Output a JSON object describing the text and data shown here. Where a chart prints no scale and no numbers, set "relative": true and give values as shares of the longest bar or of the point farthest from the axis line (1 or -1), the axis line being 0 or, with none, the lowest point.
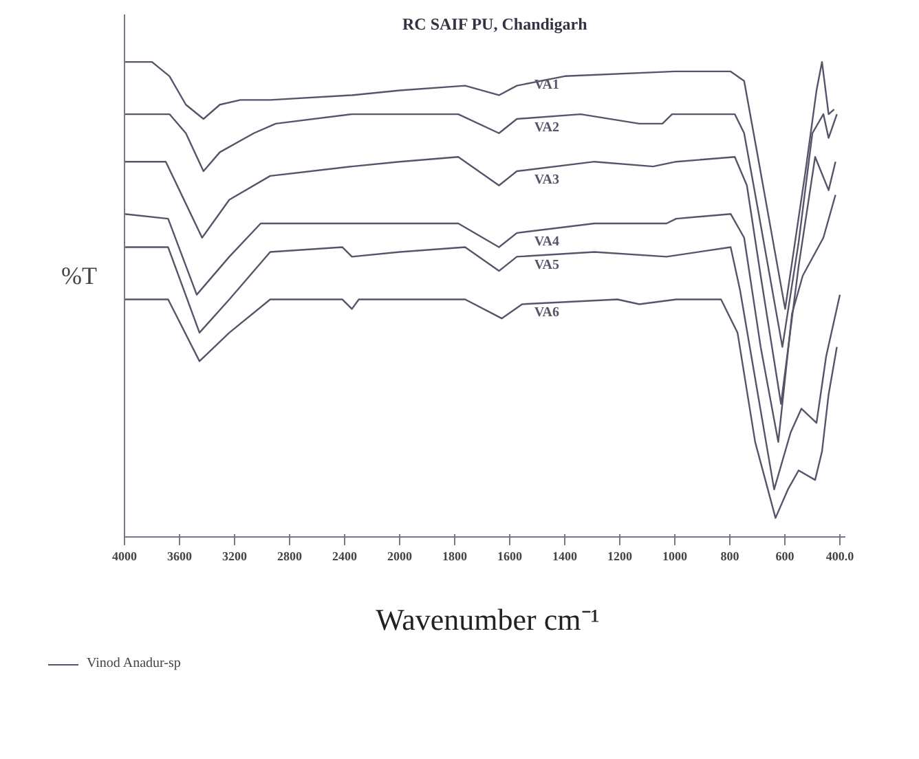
{
  "chart_data": [
    {
      "type": "line",
      "ylabel": "%T",
      "relative": true,
      "annotations": [
        "Vinod Anadur-sp"
      ],
      "xlim": [
        4000,
        2000
      ],
      "xticks": [
        4000,
        3600,
        3200,
        2800,
        2400,
        2000
      ],
      "series": [
        {
          "color": "#55556a",
          "x": [
            4000,
            3800,
            3673,
            3554,
            3426,
            3307,
            3158,
            2941,
            2347,
            2000
          ],
          "values": [
            1.0,
            1.0,
            0.97,
            0.91,
            0.88,
            0.91,
            0.92,
            0.92,
            0.93,
            0.94
          ]
        },
        {
          "color": "#55556a",
          "x": [
            4000,
            3673,
            3554,
            3426,
            3307,
            3060,
            2901,
            2347,
            2000
          ],
          "values": [
            0.89,
            0.89,
            0.85,
            0.77,
            0.81,
            0.85,
            0.87,
            0.89,
            0.89
          ]
        },
        {
          "color": "#55556a",
          "x": [
            4000,
            3700,
            3436,
            3238,
            2941,
            2347,
            2000
          ],
          "values": [
            0.79,
            0.79,
            0.63,
            0.71,
            0.76,
            0.78,
            0.79
          ]
        },
        {
          "color": "#55556a",
          "x": [
            4000,
            3683,
            3475,
            3238,
            3010,
            2446,
            2119,
            2000
          ],
          "values": [
            0.68,
            0.67,
            0.51,
            0.59,
            0.66,
            0.66,
            0.66,
            0.66
          ]
        },
        {
          "color": "#55556a",
          "x": [
            4000,
            3683,
            3455,
            3238,
            2941,
            2416,
            2347,
            2000
          ],
          "values": [
            0.61,
            0.61,
            0.43,
            0.5,
            0.6,
            0.61,
            0.59,
            0.6
          ]
        },
        {
          "color": "#55556a",
          "x": [
            4000,
            3683,
            3455,
            3238,
            2941,
            2416,
            2347,
            2297,
            2000
          ],
          "values": [
            0.5,
            0.5,
            0.37,
            0.43,
            0.5,
            0.5,
            0.48,
            0.5,
            0.5
          ]
        }
      ]
    },
    {
      "type": "line",
      "title": "RC SAIF PU, Chandigarh",
      "xlabel": "Wavenumber cm⁻¹",
      "relative": true,
      "xlim": [
        2000,
        380
      ],
      "xticks": [
        {
          "value": 2000,
          "label": null
        },
        1800,
        1600,
        1400,
        1200,
        1000,
        800,
        600,
        {
          "value": 400,
          "label": "400.0"
        }
      ],
      "series": [
        {
          "name": "VA1",
          "color": "#55556a",
          "x": [
            2000,
            1762,
            1639,
            1574,
            1400,
            1000,
            797,
            748,
            698,
            599,
            525,
            485,
            465,
            441,
            421
          ],
          "values": [
            0.94,
            0.95,
            0.93,
            0.95,
            0.97,
            0.98,
            0.98,
            0.96,
            0.8,
            0.48,
            0.77,
            0.94,
            1.0,
            0.89,
            0.9
          ]
        },
        {
          "name": "VA2",
          "color": "#55556a",
          "x": [
            2000,
            1787,
            1639,
            1574,
            1342,
            1129,
            1045,
            1010,
            782,
            748,
            698,
            609,
            550,
            500,
            460,
            441,
            411
          ],
          "values": [
            0.89,
            0.89,
            0.85,
            0.88,
            0.89,
            0.87,
            0.87,
            0.89,
            0.89,
            0.85,
            0.69,
            0.4,
            0.62,
            0.85,
            0.89,
            0.84,
            0.89
          ]
        },
        {
          "name": "VA3",
          "color": "#55556a",
          "x": [
            2000,
            1787,
            1639,
            1574,
            1292,
            1079,
            995,
            782,
            738,
            688,
            614,
            550,
            490,
            441,
            416
          ],
          "values": [
            0.79,
            0.8,
            0.74,
            0.77,
            0.79,
            0.78,
            0.79,
            0.8,
            0.74,
            0.55,
            0.28,
            0.57,
            0.8,
            0.73,
            0.79
          ]
        },
        {
          "name": "VA4",
          "color": "#55556a",
          "x": [
            2000,
            1787,
            1639,
            1574,
            1292,
            1030,
            995,
            797,
            748,
            688,
            624,
            574,
            535,
            460,
            416
          ],
          "values": [
            0.66,
            0.66,
            0.61,
            0.64,
            0.66,
            0.66,
            0.67,
            0.68,
            0.63,
            0.4,
            0.2,
            0.47,
            0.55,
            0.63,
            0.72
          ]
        },
        {
          "name": "VA5",
          "color": "#55556a",
          "x": [
            2000,
            1762,
            1639,
            1574,
            1292,
            1030,
            797,
            763,
            698,
            639,
            579,
            540,
            485,
            450,
            400
          ],
          "values": [
            0.6,
            0.61,
            0.56,
            0.59,
            0.6,
            0.59,
            0.61,
            0.52,
            0.3,
            0.1,
            0.22,
            0.27,
            0.24,
            0.38,
            0.51
          ]
        },
        {
          "name": "VA6",
          "color": "#55556a",
          "x": [
            2000,
            1762,
            1629,
            1555,
            1208,
            1129,
            995,
            832,
            772,
            708,
            634,
            589,
            550,
            490,
            465,
            441,
            411
          ],
          "values": [
            0.5,
            0.5,
            0.46,
            0.49,
            0.5,
            0.49,
            0.5,
            0.5,
            0.43,
            0.2,
            0.04,
            0.1,
            0.14,
            0.12,
            0.18,
            0.3,
            0.4
          ]
        }
      ]
    }
  ]
}
